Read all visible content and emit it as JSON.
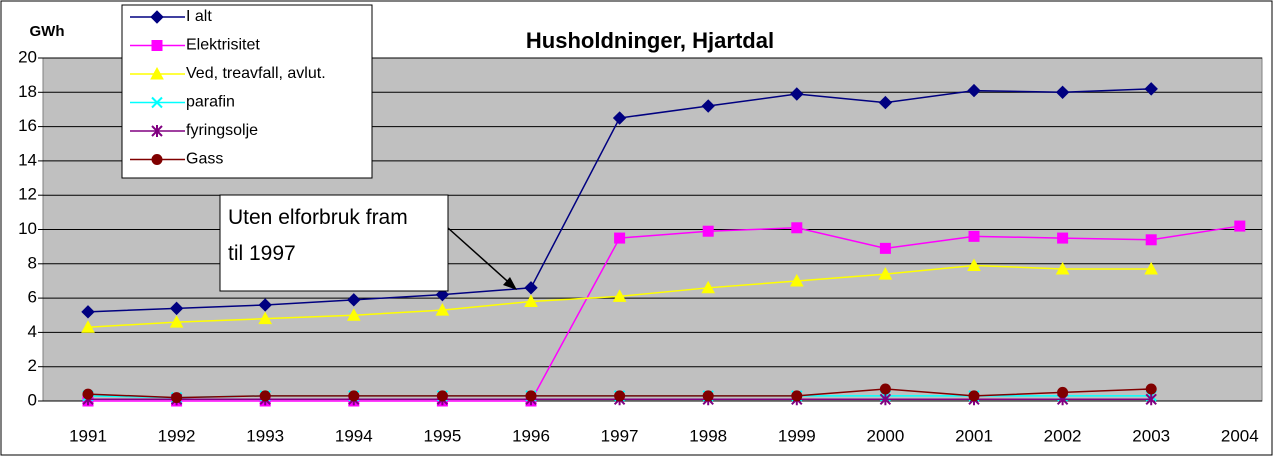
{
  "chart_data": {
    "type": "line",
    "title": "Husholdninger, Hjartdal",
    "y_label": "GWh",
    "annotation": [
      "Uten elforbruk fram",
      "til 1997"
    ],
    "categories": [
      "1991",
      "1992",
      "1993",
      "1994",
      "1995",
      "1996",
      "1997",
      "1998",
      "1999",
      "2000",
      "2001",
      "2002",
      "2003",
      "2004"
    ],
    "series": [
      {
        "name": "I alt",
        "color": "#000080",
        "marker": "diamond",
        "values": [
          5.2,
          5.4,
          5.6,
          5.9,
          6.2,
          6.6,
          16.5,
          17.2,
          17.9,
          17.4,
          18.1,
          18.0,
          18.2,
          null
        ]
      },
      {
        "name": "Elektrisitet",
        "color": "#ff00ff",
        "marker": "square",
        "values": [
          0,
          0,
          0,
          0,
          0,
          0,
          9.5,
          9.9,
          10.1,
          8.9,
          9.6,
          9.5,
          9.4,
          10.2
        ]
      },
      {
        "name": "Ved, treavfall, avlut.",
        "color": "#ffff00",
        "marker": "triangle",
        "values": [
          4.3,
          4.6,
          4.8,
          5.0,
          5.3,
          5.8,
          6.1,
          6.6,
          7.0,
          7.4,
          7.9,
          7.7,
          7.7,
          null
        ]
      },
      {
        "name": "parafin",
        "color": "#00ffff",
        "marker": "x",
        "values": [
          0.3,
          0.2,
          0.3,
          0.3,
          0.3,
          0.3,
          0.3,
          0.3,
          0.3,
          0.3,
          0.3,
          0.3,
          0.3,
          null
        ]
      },
      {
        "name": "fyringsolje",
        "color": "#800080",
        "marker": "star",
        "values": [
          0.1,
          0.1,
          0.1,
          0.1,
          0.1,
          0.1,
          0.1,
          0.1,
          0.1,
          0.1,
          0.1,
          0.1,
          0.1,
          null
        ]
      },
      {
        "name": "Gass",
        "color": "#800000",
        "marker": "circle",
        "values": [
          0.4,
          0.2,
          0.3,
          0.3,
          0.3,
          0.3,
          0.3,
          0.3,
          0.3,
          0.7,
          0.3,
          0.5,
          0.7,
          null
        ]
      }
    ],
    "ylim": [
      0,
      20
    ],
    "yticks": [
      0,
      2,
      4,
      6,
      8,
      10,
      12,
      14,
      16,
      18,
      20
    ],
    "grid": true
  }
}
